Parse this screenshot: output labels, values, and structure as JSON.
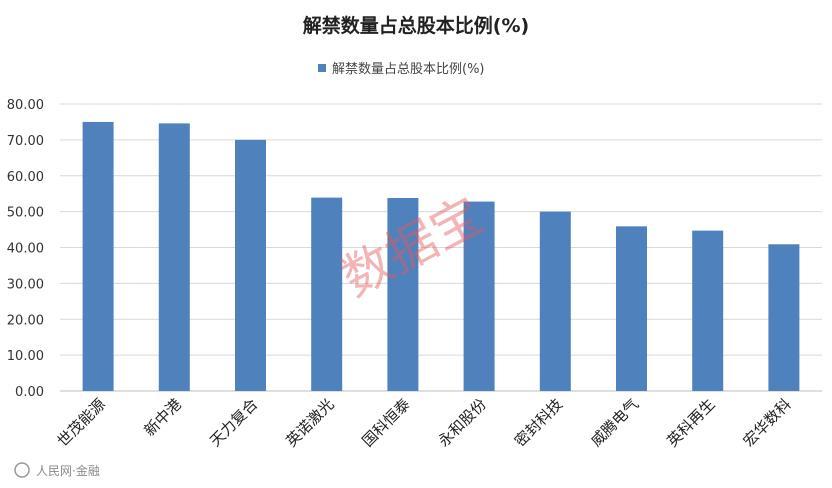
{
  "chart_data": {
    "type": "bar",
    "title": "解禁数量占总股本比例(%)",
    "categories": [
      "世茂能源",
      "新中港",
      "天力复合",
      "英诺激光",
      "国科恒泰",
      "永和股份",
      "密封科技",
      "威腾电气",
      "英科再生",
      "宏华数科"
    ],
    "series": [
      {
        "name": "解禁数量占总股本比例(%)",
        "values": [
          75.0,
          74.6,
          70.0,
          53.9,
          53.8,
          52.8,
          50.0,
          45.9,
          44.7,
          40.9
        ],
        "color": "#4f81bd"
      }
    ],
    "ylim": [
      0,
      80
    ],
    "yticks": [
      "0.00",
      "10.00",
      "20.00",
      "30.00",
      "40.00",
      "50.00",
      "60.00",
      "70.00",
      "80.00"
    ],
    "grid": true,
    "legend_position": "top-center",
    "xlabel": "",
    "ylabel": ""
  },
  "watermark": {
    "text": "数据宝",
    "color": "#e35a5a"
  },
  "source_logo": {
    "text": "人民网·金融"
  }
}
